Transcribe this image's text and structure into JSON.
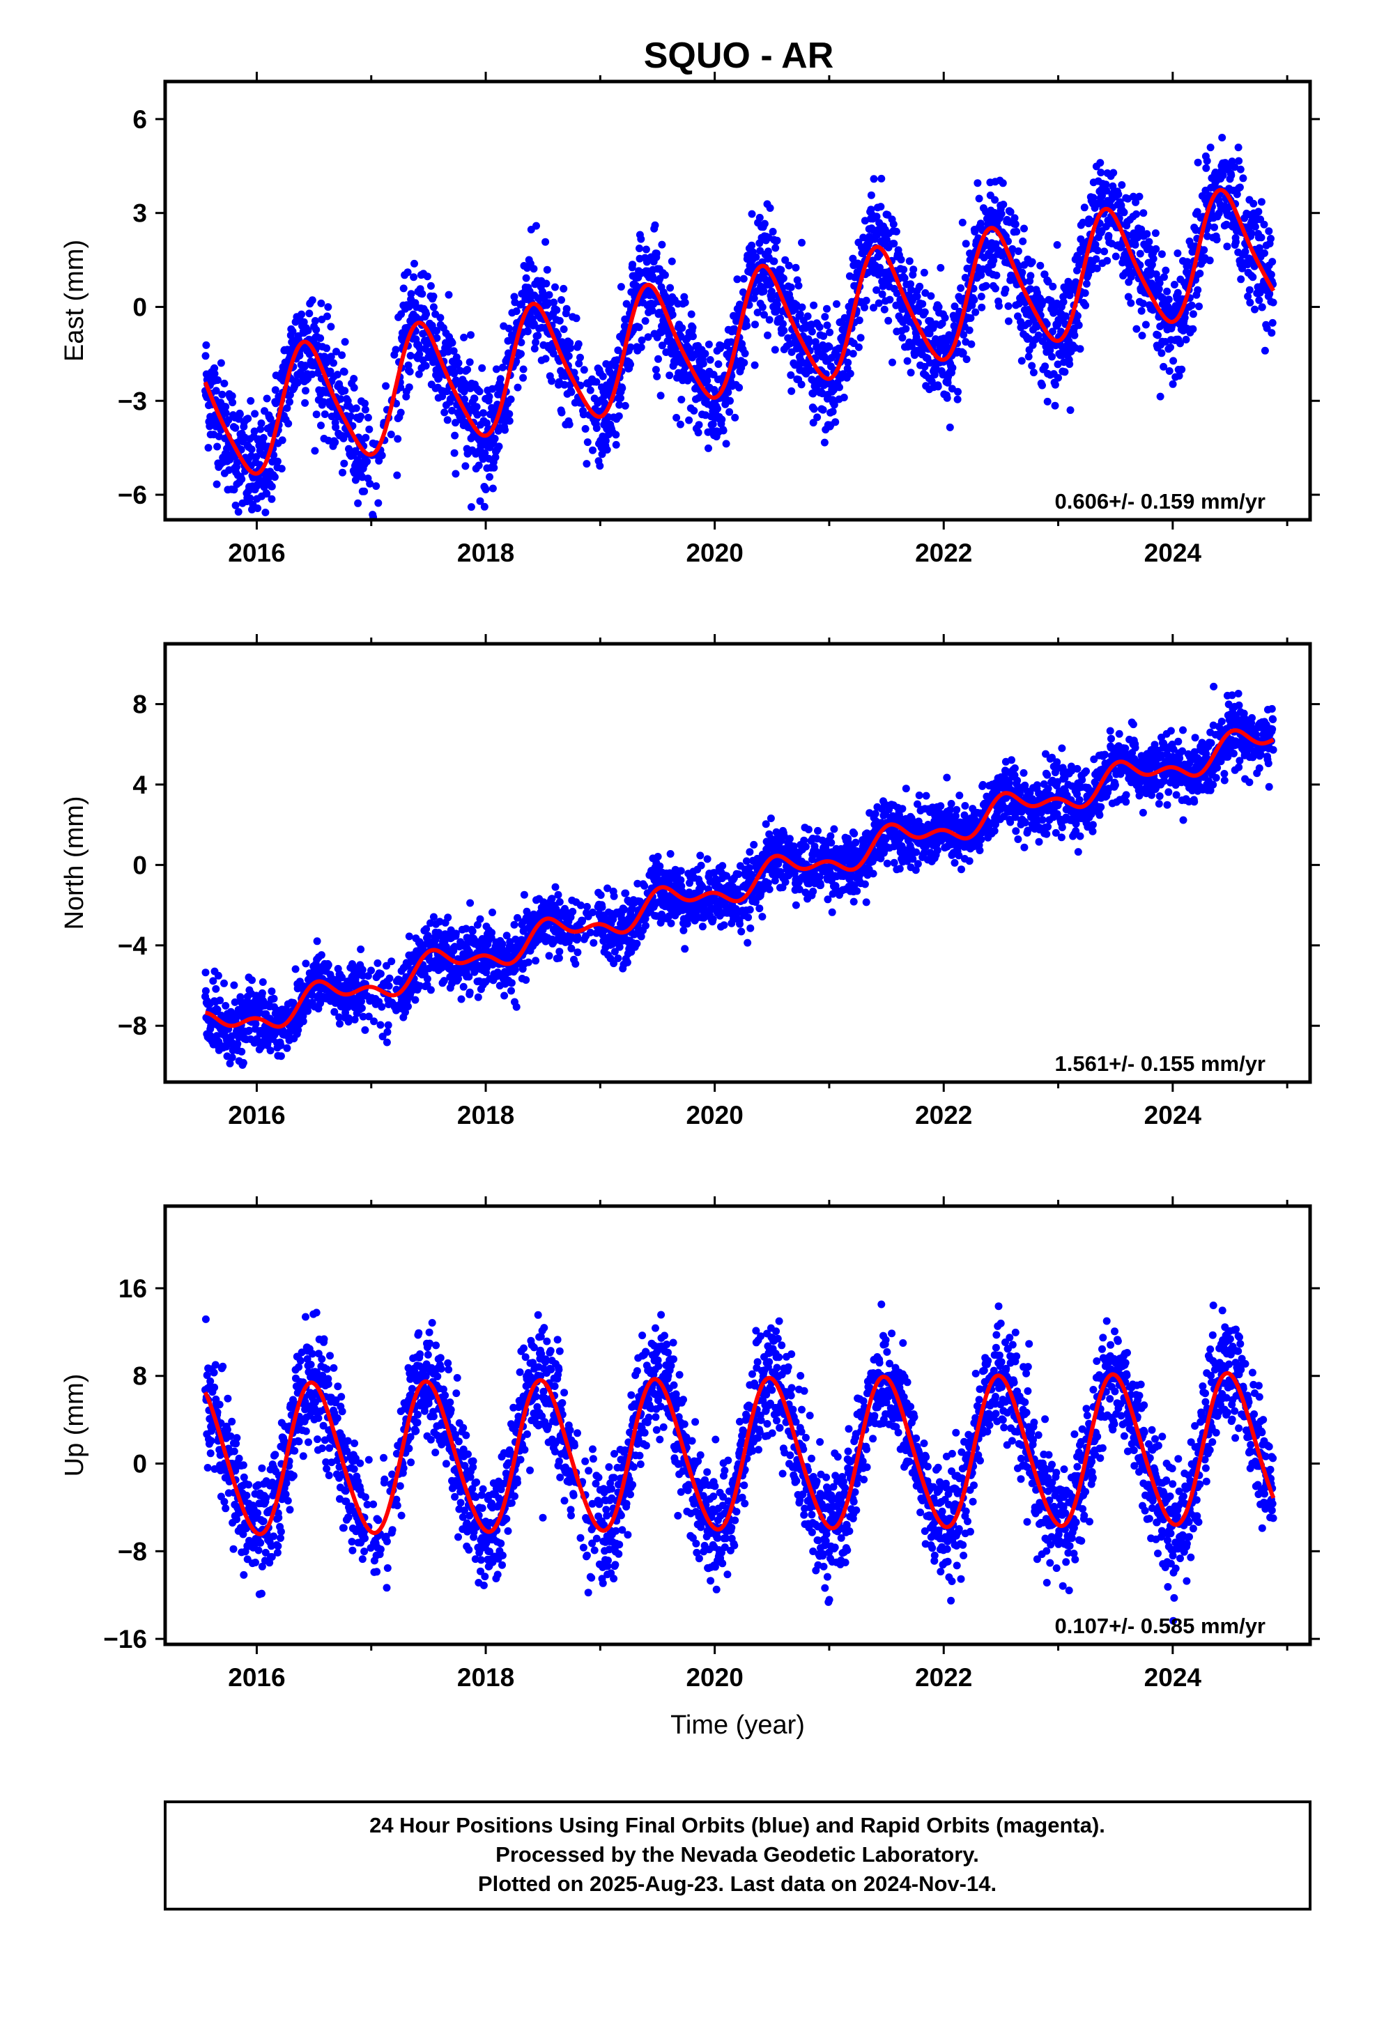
{
  "title": "SQUO - AR",
  "caption": {
    "lines": [
      "24 Hour Positions Using Final Orbits (blue) and Rapid Orbits (magenta).",
      "Processed by the Nevada Geodetic Laboratory.",
      "Plotted on 2025-Aug-23. Last data on 2024-Nov-14."
    ]
  },
  "colors": {
    "points": "#0000ff",
    "model": "#ff0000",
    "axis": "#000000"
  },
  "chart_data": [
    {
      "type": "scatter",
      "ylabel": "East (mm)",
      "xlabel": "",
      "xlim": [
        2015.2,
        2025.2
      ],
      "ylim": [
        -6.8,
        7.2
      ],
      "xticks": [
        2016,
        2018,
        2020,
        2022,
        2024
      ],
      "yticks": [
        -6,
        -3,
        0,
        3,
        6
      ],
      "rate_text": "0.606+/- 0.159 mm/yr",
      "model": {
        "start": 2015.55,
        "end": 2024.88,
        "intercept": -1.0,
        "trend": 0.606,
        "annual_amplitude": 1.9,
        "annual_phase_year": 2016.45,
        "semiannual_amplitude": 0.3
      },
      "scatter_sigma": 0.9
    },
    {
      "type": "scatter",
      "ylabel": "North (mm)",
      "xlabel": "",
      "xlim": [
        2015.2,
        2025.2
      ],
      "ylim": [
        -10.8,
        11.0
      ],
      "xticks": [
        2016,
        2018,
        2020,
        2022,
        2024
      ],
      "yticks": [
        -8,
        -4,
        0,
        4,
        8
      ],
      "rate_text": "1.561+/- 0.155 mm/yr",
      "model": {
        "start": 2015.55,
        "end": 2024.88,
        "intercept": -1.3,
        "trend": 1.561,
        "annual_amplitude": 0.6,
        "annual_phase_year": 2016.6,
        "semiannual_amplitude": 0.4
      },
      "scatter_sigma": 0.8
    },
    {
      "type": "scatter",
      "ylabel": "Up (mm)",
      "xlabel": "Time (year)",
      "xlim": [
        2015.2,
        2025.2
      ],
      "ylim": [
        -16.5,
        23.5
      ],
      "xticks": [
        2016,
        2018,
        2020,
        2022,
        2024
      ],
      "yticks": [
        -16,
        -8,
        0,
        8,
        16
      ],
      "rate_text": "0.107+/- 0.585 mm/yr",
      "model": {
        "start": 2015.55,
        "end": 2024.88,
        "intercept": 0.7,
        "trend": 0.107,
        "annual_amplitude": 6.8,
        "annual_phase_year": 2016.5,
        "semiannual_amplitude": 0.6
      },
      "scatter_sigma": 2.6
    }
  ]
}
